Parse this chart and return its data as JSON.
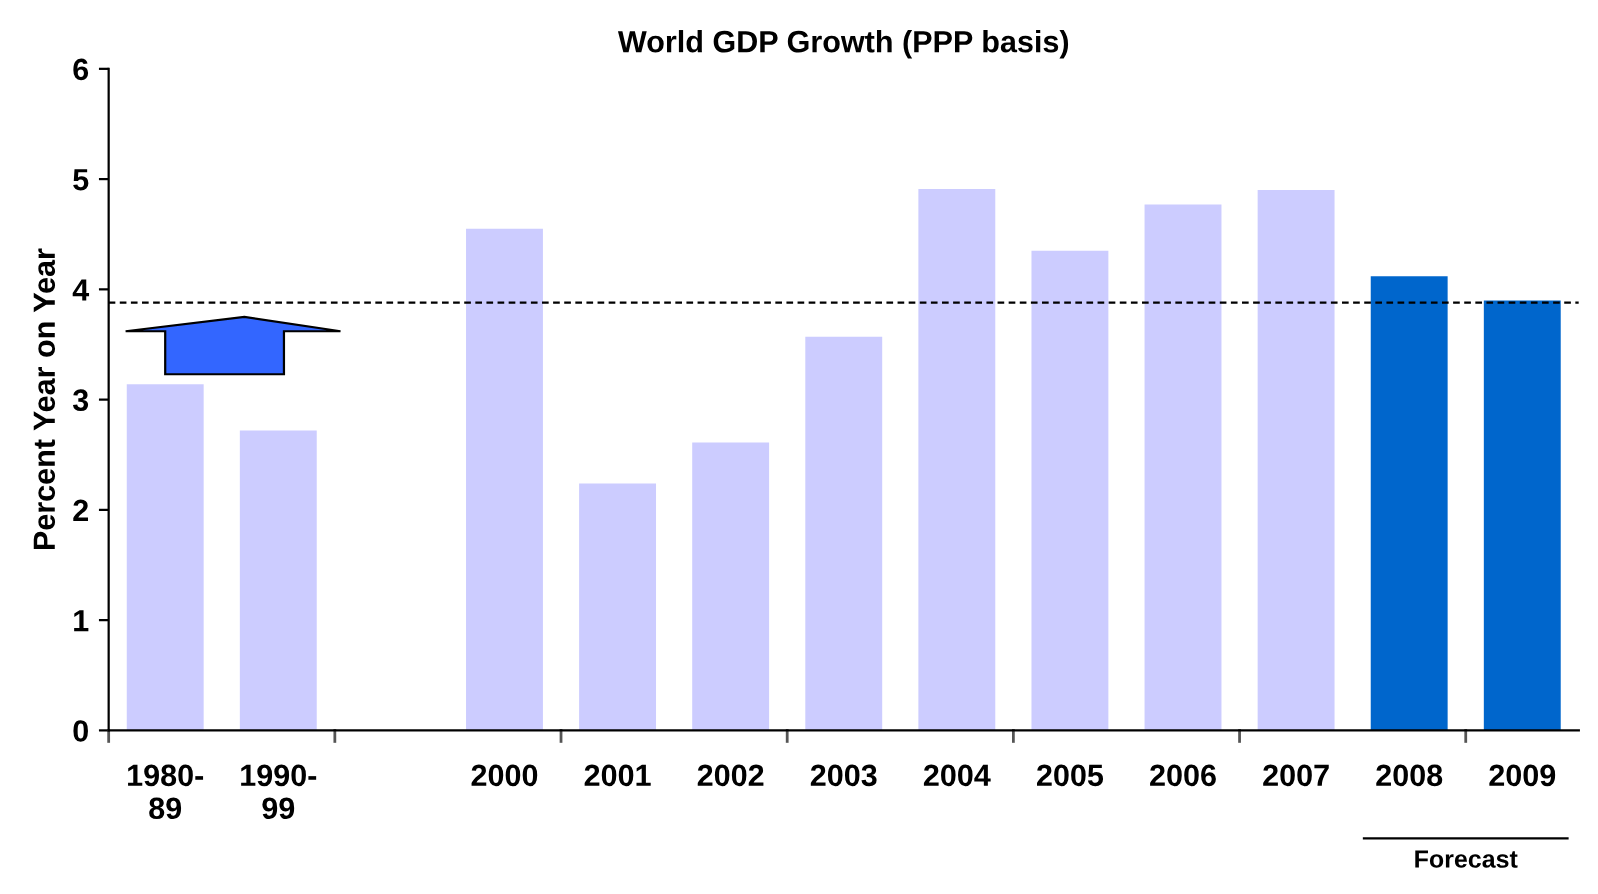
{
  "chart_data": {
    "type": "bar",
    "title": "World GDP Growth (PPP basis)",
    "ylabel": "Percent Year on Year",
    "categories": [
      "1980-\n89",
      "1990-\n99",
      null,
      "2000",
      "2001",
      "2002",
      "2003",
      "2004",
      "2005",
      "2006",
      "2007",
      "2008",
      "2009"
    ],
    "values": [
      3.14,
      2.72,
      null,
      4.55,
      2.24,
      2.61,
      3.57,
      4.91,
      4.35,
      4.77,
      4.9,
      4.12,
      3.9
    ],
    "colors": [
      "#ccccff",
      "#ccccff",
      "#ccccff",
      "#ccccff",
      "#ccccff",
      "#ccccff",
      "#ccccff",
      "#ccccff",
      "#ccccff",
      "#ccccff",
      "#ccccff",
      "#0066cc",
      "#0066cc"
    ],
    "ylim": [
      0,
      6
    ],
    "yticks": [
      0,
      1,
      2,
      3,
      4,
      5,
      6
    ],
    "grid": false,
    "legend": false,
    "ref_lines": [
      {
        "axis": "y",
        "value": 3.88,
        "color": "#000000",
        "line_style": "dashed"
      }
    ],
    "annotations": [
      "Forecast"
    ]
  }
}
